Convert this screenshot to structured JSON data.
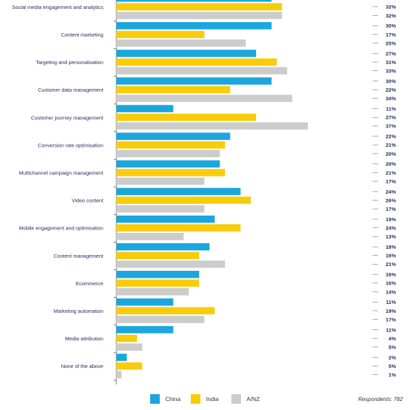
{
  "chart_data": {
    "type": "bar",
    "orientation": "horizontal",
    "categories": [
      "Social media engagement and analytics",
      "Content marketing",
      "Targeting and personalisation",
      "Customer data management",
      "Customer journey management",
      "Conversion rate optimisation",
      "Multichannel campaign management",
      "Video content",
      "Mobile engagement and optimisation",
      "Content management",
      "Ecommerce",
      "Marketing automation",
      "Media attribution",
      "None of the above"
    ],
    "series": [
      {
        "name": "China",
        "color": "#1ba6de",
        "values": [
          30,
          30,
          27,
          30,
          11,
          22,
          20,
          24,
          19,
          18,
          16,
          11,
          11,
          2
        ]
      },
      {
        "name": "India",
        "color": "#f9cc0b",
        "values": [
          32,
          17,
          31,
          22,
          27,
          21,
          21,
          26,
          24,
          16,
          16,
          19,
          4,
          5
        ]
      },
      {
        "name": "A/NZ",
        "color": "#cccccc",
        "values": [
          32,
          25,
          33,
          34,
          37,
          20,
          17,
          17,
          13,
          21,
          14,
          17,
          5,
          1
        ]
      }
    ],
    "value_suffix": "%",
    "xlim": [
      0,
      37
    ],
    "legend_position": "bottom"
  },
  "footer": {
    "respondents": "Respondents: 782"
  }
}
